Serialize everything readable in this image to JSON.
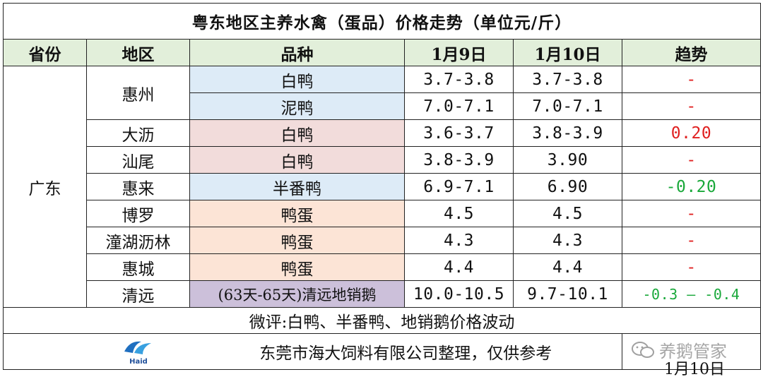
{
  "title": "粤东地区主养水禽（蛋品）价格走势（单位元/斤）",
  "headers": [
    "省份",
    "地区",
    "品种",
    "1月9日",
    "1月10日",
    "趋势"
  ],
  "province": "广东",
  "rows": [
    {
      "region": "惠州",
      "variety": "白鸭",
      "d1": "3.7-3.8",
      "d2": "3.7-3.8",
      "trend": "-"
    },
    {
      "region": "",
      "variety": "泥鸭",
      "d1": "7.0-7.1",
      "d2": "7.0-7.1",
      "trend": "-"
    },
    {
      "region": "大沥",
      "variety": "白鸭",
      "d1": "3.6-3.7",
      "d2": "3.8-3.9",
      "trend": "0.20"
    },
    {
      "region": "汕尾",
      "variety": "白鸭",
      "d1": "3.8-3.9",
      "d2": "3.90",
      "trend": "-"
    },
    {
      "region": "惠来",
      "variety": "半番鸭",
      "d1": "6.9-7.1",
      "d2": "6.90",
      "trend": "-0.20"
    },
    {
      "region": "博罗",
      "variety": "鸭蛋",
      "d1": "4.5",
      "d2": "4.5",
      "trend": "-"
    },
    {
      "region": "潼湖沥林",
      "variety": "鸭蛋",
      "d1": "4.3",
      "d2": "4.3",
      "trend": "-"
    },
    {
      "region": "惠城",
      "variety": "鸭蛋",
      "d1": "4.4",
      "d2": "4.4",
      "trend": "-"
    },
    {
      "region": "清远",
      "variety": "(63天-65天)清远地销鹅",
      "d1": "10.0-10.5",
      "d2": "9.7-10.1",
      "trend": "-0.3 — -0.4"
    }
  ],
  "comment": "微评:白鸭、半番鸭、地销鹅价格波动",
  "footer": {
    "logo_text": "Haid",
    "note": "东莞市海大饲料有限公司整理，仅供参考",
    "date": "1月10日",
    "watermark": "养鹅管家"
  },
  "colors": {
    "header_bg": "#e2efda",
    "blue": "#ddebf7",
    "pink": "#f2dcdb",
    "orange": "#fce4d6",
    "purple": "#ccc0da",
    "up": "#e02020",
    "down": "#19a83a"
  }
}
